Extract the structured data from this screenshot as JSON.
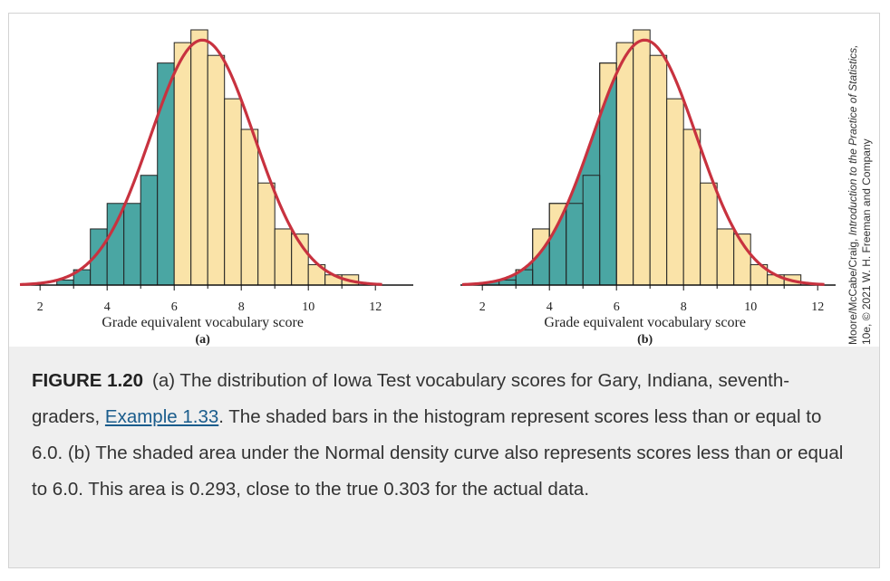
{
  "credit": {
    "line1_prefix": "Moore/McCabe/Craig, ",
    "line1_title": "Introduction to the Practice of Statistics,",
    "line2": "10e, © 2021 W. H. Freeman and Company"
  },
  "caption": {
    "figure_label": "FIGURE 1.20",
    "text_before_link": "(a) The distribution of Iowa Test vocabulary scores for Gary, Indiana, seventh-graders, ",
    "link_text": "Example 1.33",
    "text_after_link": ". The shaded bars in the histogram represent scores less than or equal to 6.0. (b) The shaded area under the Normal density curve also represents scores less than or equal to 6.0. This area is 0.293, close to the true 0.303 for the actual data."
  },
  "colors": {
    "shaded": "#4aa6a3",
    "unshaded": "#fae3a8",
    "curve": "#c8323f",
    "outline": "#222222"
  },
  "chart_data": [
    {
      "type": "bar",
      "panel_label": "(a)",
      "xlabel": "Grade equivalent vocabulary score",
      "xlim": [
        1.4,
        12.7
      ],
      "ylim": [
        0,
        1
      ],
      "xticks": [
        2,
        4,
        6,
        8,
        10,
        12
      ],
      "bin_width": 0.5,
      "shade_upto": 6.0,
      "bins_left": [
        2.5,
        3.0,
        3.5,
        4.0,
        4.5,
        5.0,
        5.5,
        6.0,
        6.5,
        7.0,
        7.5,
        8.0,
        8.5,
        9.0,
        9.5,
        10.0,
        10.5,
        11.0
      ],
      "values": [
        0.02,
        0.06,
        0.22,
        0.32,
        0.32,
        0.43,
        0.87,
        0.95,
        1.0,
        0.9,
        0.73,
        0.61,
        0.4,
        0.22,
        0.2,
        0.08,
        0.04,
        0.04
      ],
      "curve": {
        "type": "normal",
        "mean": 6.84,
        "sd": 1.55,
        "peak": 0.96
      },
      "shading_mode": "bars"
    },
    {
      "type": "bar",
      "panel_label": "(b)",
      "xlabel": "Grade equivalent vocabulary score",
      "xlim": [
        1.4,
        12.7
      ],
      "ylim": [
        0,
        1
      ],
      "xticks": [
        2,
        4,
        6,
        8,
        10,
        12
      ],
      "bin_width": 0.5,
      "shade_upto": 6.0,
      "bins_left": [
        2.5,
        3.0,
        3.5,
        4.0,
        4.5,
        5.0,
        5.5,
        6.0,
        6.5,
        7.0,
        7.5,
        8.0,
        8.5,
        9.0,
        9.5,
        10.0,
        10.5,
        11.0
      ],
      "values": [
        0.02,
        0.06,
        0.22,
        0.32,
        0.32,
        0.43,
        0.87,
        0.95,
        1.0,
        0.9,
        0.73,
        0.61,
        0.4,
        0.22,
        0.2,
        0.08,
        0.04,
        0.04
      ],
      "curve": {
        "type": "normal",
        "mean": 6.84,
        "sd": 1.55,
        "peak": 0.96
      },
      "shading_mode": "curve-area"
    }
  ]
}
